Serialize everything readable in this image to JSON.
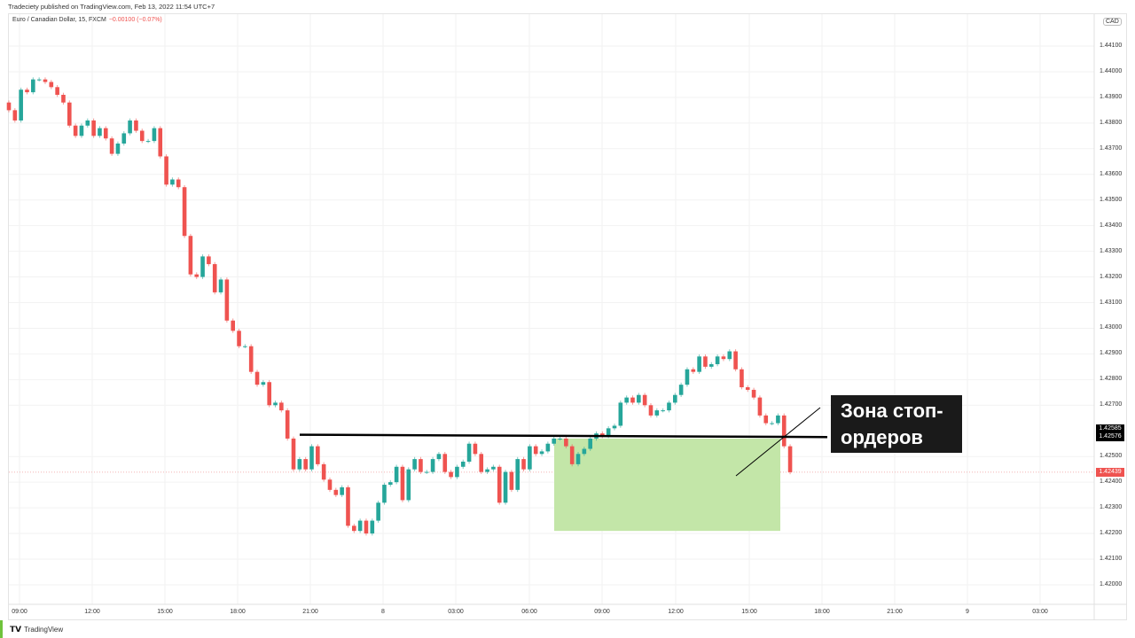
{
  "published": "Tradeciety published on TradingView.com, Feb 13, 2022 11:54 UTC+7",
  "legend": {
    "symbol": "Euro / Canadian Dollar, 15, FXCM",
    "change": "−0.00100 (−0.07%)"
  },
  "currency": "CAD",
  "colors": {
    "up": "#26a69a",
    "down": "#ef5350",
    "zone": "#c3e6a8",
    "line": "#000000"
  },
  "price_axis": [
    "1.44100",
    "1.44000",
    "1.43900",
    "1.43800",
    "1.43700",
    "1.43600",
    "1.43500",
    "1.43400",
    "1.43300",
    "1.43200",
    "1.43100",
    "1.43000",
    "1.42900",
    "1.42800",
    "1.42700",
    "1.42500",
    "1.42400",
    "1.42300",
    "1.42200",
    "1.42100",
    "1.42000"
  ],
  "price_badges": {
    "line_high": "1.42585",
    "line_low": "1.42576",
    "last": "1.42439"
  },
  "time_axis": [
    "09:00",
    "12:00",
    "15:00",
    "18:00",
    "21:00",
    "8",
    "03:00",
    "06:00",
    "09:00",
    "12:00",
    "15:00",
    "18:00",
    "21:00",
    "9",
    "03:00"
  ],
  "annotation": "Зона стоп-\nордеров",
  "footer": "TradingView",
  "chart_data": {
    "type": "candlestick",
    "interval": "15",
    "ylim": [
      1.4195,
      1.442
    ],
    "first_open": 1.4388,
    "closes": [
      1.4385,
      1.4381,
      1.4393,
      1.4392,
      1.4397,
      1.4397,
      1.4396,
      1.4394,
      1.4391,
      1.4388,
      1.4379,
      1.4375,
      1.4379,
      1.4381,
      1.4375,
      1.4378,
      1.4374,
      1.4368,
      1.4372,
      1.4376,
      1.4381,
      1.4377,
      1.4373,
      1.4373,
      1.4378,
      1.4367,
      1.4356,
      1.4358,
      1.4355,
      1.4336,
      1.4321,
      1.432,
      1.4328,
      1.4325,
      1.4314,
      1.4319,
      1.4303,
      1.4299,
      1.4293,
      1.4293,
      1.4283,
      1.4278,
      1.4279,
      1.427,
      1.4271,
      1.4268,
      1.4257,
      1.4245,
      1.4249,
      1.4245,
      1.4254,
      1.4247,
      1.4241,
      1.4237,
      1.4235,
      1.4238,
      1.4223,
      1.4221,
      1.4225,
      1.422,
      1.4225,
      1.4232,
      1.4239,
      1.424,
      1.4246,
      1.4233,
      1.4245,
      1.4249,
      1.4244,
      1.4244,
      1.4249,
      1.4251,
      1.4244,
      1.4242,
      1.4246,
      1.4248,
      1.4255,
      1.4251,
      1.4244,
      1.4245,
      1.4246,
      1.4232,
      1.4244,
      1.4237,
      1.4249,
      1.4245,
      1.4254,
      1.4251,
      1.4252,
      1.4255,
      1.4257,
      1.4257,
      1.4254,
      1.4247,
      1.4251,
      1.4253,
      1.4257,
      1.4259,
      1.4258,
      1.4261,
      1.4262,
      1.4271,
      1.4273,
      1.4271,
      1.4274,
      1.427,
      1.4266,
      1.4268,
      1.4268,
      1.4271,
      1.4274,
      1.4278,
      1.4284,
      1.4283,
      1.4289,
      1.4285,
      1.4286,
      1.4289,
      1.4288,
      1.4291,
      1.4284,
      1.4277,
      1.4276,
      1.4273,
      1.4266,
      1.4263,
      1.4263,
      1.4266,
      1.4254,
      1.42439
    ],
    "level_line": [
      1.42585,
      1.42576
    ],
    "stop_zone": {
      "top": 1.4257,
      "bottom": 1.4221
    }
  }
}
